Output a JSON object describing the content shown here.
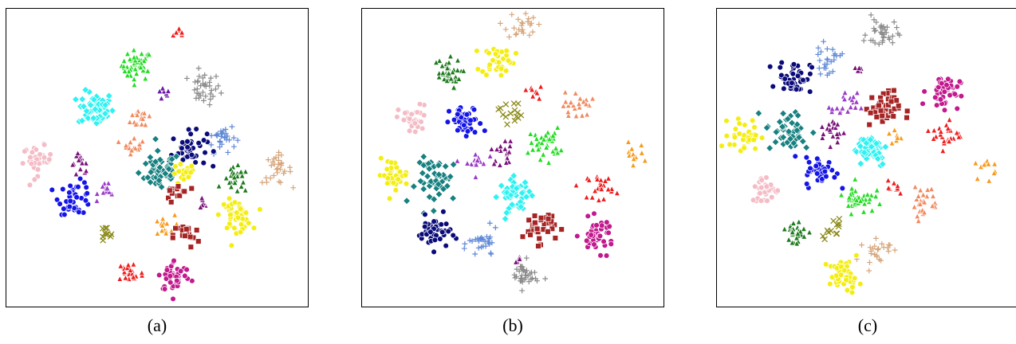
{
  "colors": {
    "red": "#ee1c1c",
    "green": "#22dd22",
    "gray": "#8a8a8a",
    "purple": "#6a1aa6",
    "cyan": "#2ef2f2",
    "coral": "#f08a5f",
    "navy": "#0a0a7a",
    "cornflower": "#5f88d6",
    "pink": "#f4bcc6",
    "teal": "#178080",
    "blue": "#1414e8",
    "orchid": "#9a3bc8",
    "yellow": "#f4ee10",
    "darkgreen": "#1d7a1d",
    "tan": "#d6a67c",
    "olive": "#8c8a1a",
    "orange": "#f79a1a",
    "brown": "#a62424",
    "magenta": "#c2198e",
    "violet": "#7a127a"
  },
  "chart_data": [
    {
      "type": "scatter",
      "caption": "(a)",
      "xlim": [
        0,
        1
      ],
      "ylim": [
        0,
        1
      ],
      "grid": false,
      "clusters": [
        {
          "color": "red",
          "marker": "triangle",
          "x": 0.58,
          "y": 0.93,
          "n": 8,
          "spread": 0.012
        },
        {
          "color": "green",
          "marker": "triangle",
          "x": 0.43,
          "y": 0.82,
          "n": 40,
          "spread": 0.026
        },
        {
          "color": "gray",
          "marker": "plus",
          "x": 0.66,
          "y": 0.74,
          "n": 35,
          "spread": 0.028
        },
        {
          "color": "purple",
          "marker": "triangle",
          "x": 0.52,
          "y": 0.72,
          "n": 8,
          "spread": 0.012
        },
        {
          "color": "cyan",
          "marker": "diamond",
          "x": 0.29,
          "y": 0.67,
          "n": 55,
          "spread": 0.03
        },
        {
          "color": "coral",
          "marker": "triangle",
          "x": 0.45,
          "y": 0.64,
          "n": 18,
          "spread": 0.02
        },
        {
          "color": "cornflower",
          "marker": "plus",
          "x": 0.72,
          "y": 0.57,
          "n": 30,
          "spread": 0.025
        },
        {
          "color": "navy",
          "marker": "circle",
          "x": 0.61,
          "y": 0.53,
          "n": 45,
          "spread": 0.03
        },
        {
          "color": "coral",
          "marker": "triangle",
          "x": 0.42,
          "y": 0.55,
          "n": 15,
          "spread": 0.018
        },
        {
          "color": "pink",
          "marker": "circle",
          "x": 0.09,
          "y": 0.49,
          "n": 35,
          "spread": 0.025
        },
        {
          "color": "violet",
          "marker": "triangle",
          "x": 0.24,
          "y": 0.48,
          "n": 15,
          "spread": 0.018
        },
        {
          "color": "tan",
          "marker": "plus",
          "x": 0.91,
          "y": 0.46,
          "n": 30,
          "spread": 0.025
        },
        {
          "color": "teal",
          "marker": "diamond",
          "x": 0.51,
          "y": 0.45,
          "n": 60,
          "spread": 0.035
        },
        {
          "color": "yellow",
          "marker": "circle",
          "x": 0.59,
          "y": 0.44,
          "n": 20,
          "spread": 0.02
        },
        {
          "color": "darkgreen",
          "marker": "triangle",
          "x": 0.77,
          "y": 0.42,
          "n": 25,
          "spread": 0.022
        },
        {
          "color": "orchid",
          "marker": "triangle",
          "x": 0.33,
          "y": 0.39,
          "n": 12,
          "spread": 0.016
        },
        {
          "color": "brown",
          "marker": "square",
          "x": 0.57,
          "y": 0.38,
          "n": 14,
          "spread": 0.02
        },
        {
          "color": "blue",
          "marker": "circle",
          "x": 0.22,
          "y": 0.36,
          "n": 45,
          "spread": 0.028
        },
        {
          "color": "violet",
          "marker": "triangle",
          "x": 0.65,
          "y": 0.34,
          "n": 8,
          "spread": 0.012
        },
        {
          "color": "yellow",
          "marker": "circle",
          "x": 0.77,
          "y": 0.3,
          "n": 45,
          "spread": 0.026
        },
        {
          "color": "orange",
          "marker": "triangle",
          "x": 0.52,
          "y": 0.26,
          "n": 15,
          "spread": 0.02
        },
        {
          "color": "olive",
          "marker": "cross",
          "x": 0.32,
          "y": 0.23,
          "n": 10,
          "spread": 0.016
        },
        {
          "color": "brown",
          "marker": "square",
          "x": 0.6,
          "y": 0.23,
          "n": 20,
          "spread": 0.022
        },
        {
          "color": "red",
          "marker": "triangle",
          "x": 0.41,
          "y": 0.1,
          "n": 30,
          "spread": 0.022
        },
        {
          "color": "magenta",
          "marker": "circle",
          "x": 0.56,
          "y": 0.09,
          "n": 45,
          "spread": 0.028
        }
      ]
    },
    {
      "type": "scatter",
      "caption": "(b)",
      "xlim": [
        0,
        1
      ],
      "ylim": [
        0,
        1
      ],
      "grid": false,
      "clusters": [
        {
          "color": "tan",
          "marker": "plus",
          "x": 0.53,
          "y": 0.96,
          "n": 25,
          "spread": 0.025
        },
        {
          "color": "yellow",
          "marker": "circle",
          "x": 0.45,
          "y": 0.84,
          "n": 40,
          "spread": 0.028
        },
        {
          "color": "darkgreen",
          "marker": "triangle",
          "x": 0.27,
          "y": 0.79,
          "n": 35,
          "spread": 0.026
        },
        {
          "color": "red",
          "marker": "triangle",
          "x": 0.57,
          "y": 0.73,
          "n": 8,
          "spread": 0.014
        },
        {
          "color": "coral",
          "marker": "triangle",
          "x": 0.72,
          "y": 0.68,
          "n": 25,
          "spread": 0.024
        },
        {
          "color": "olive",
          "marker": "cross",
          "x": 0.49,
          "y": 0.66,
          "n": 15,
          "spread": 0.02
        },
        {
          "color": "pink",
          "marker": "circle",
          "x": 0.16,
          "y": 0.63,
          "n": 35,
          "spread": 0.026
        },
        {
          "color": "blue",
          "marker": "circle",
          "x": 0.34,
          "y": 0.62,
          "n": 45,
          "spread": 0.028
        },
        {
          "color": "green",
          "marker": "triangle",
          "x": 0.61,
          "y": 0.55,
          "n": 35,
          "spread": 0.026
        },
        {
          "color": "violet",
          "marker": "triangle",
          "x": 0.47,
          "y": 0.52,
          "n": 18,
          "spread": 0.022
        },
        {
          "color": "orange",
          "marker": "triangle",
          "x": 0.91,
          "y": 0.51,
          "n": 12,
          "spread": 0.02
        },
        {
          "color": "orchid",
          "marker": "triangle",
          "x": 0.37,
          "y": 0.48,
          "n": 14,
          "spread": 0.02
        },
        {
          "color": "yellow",
          "marker": "circle",
          "x": 0.09,
          "y": 0.44,
          "n": 35,
          "spread": 0.026
        },
        {
          "color": "teal",
          "marker": "diamond",
          "x": 0.25,
          "y": 0.42,
          "n": 50,
          "spread": 0.04
        },
        {
          "color": "red",
          "marker": "triangle",
          "x": 0.8,
          "y": 0.4,
          "n": 25,
          "spread": 0.022
        },
        {
          "color": "cyan",
          "marker": "diamond",
          "x": 0.51,
          "y": 0.37,
          "n": 50,
          "spread": 0.028
        },
        {
          "color": "brown",
          "marker": "square",
          "x": 0.59,
          "y": 0.26,
          "n": 35,
          "spread": 0.028
        },
        {
          "color": "navy",
          "marker": "circle",
          "x": 0.23,
          "y": 0.24,
          "n": 45,
          "spread": 0.028
        },
        {
          "color": "magenta",
          "marker": "circle",
          "x": 0.79,
          "y": 0.23,
          "n": 45,
          "spread": 0.028
        },
        {
          "color": "cornflower",
          "marker": "plus",
          "x": 0.4,
          "y": 0.2,
          "n": 30,
          "spread": 0.025
        },
        {
          "color": "violet",
          "marker": "triangle",
          "x": 0.51,
          "y": 0.14,
          "n": 5,
          "spread": 0.008
        },
        {
          "color": "gray",
          "marker": "plus",
          "x": 0.54,
          "y": 0.09,
          "n": 35,
          "spread": 0.024
        }
      ]
    },
    {
      "type": "scatter",
      "caption": "(c)",
      "xlim": [
        0,
        1
      ],
      "ylim": [
        0,
        1
      ],
      "grid": false,
      "clusters": [
        {
          "color": "gray",
          "marker": "plus",
          "x": 0.55,
          "y": 0.93,
          "n": 35,
          "spread": 0.026
        },
        {
          "color": "cornflower",
          "marker": "plus",
          "x": 0.36,
          "y": 0.84,
          "n": 25,
          "spread": 0.024
        },
        {
          "color": "navy",
          "marker": "circle",
          "x": 0.25,
          "y": 0.78,
          "n": 45,
          "spread": 0.028
        },
        {
          "color": "violet",
          "marker": "triangle",
          "x": 0.47,
          "y": 0.81,
          "n": 5,
          "spread": 0.01
        },
        {
          "color": "magenta",
          "marker": "circle",
          "x": 0.76,
          "y": 0.73,
          "n": 45,
          "spread": 0.028
        },
        {
          "color": "brown",
          "marker": "square",
          "x": 0.55,
          "y": 0.67,
          "n": 45,
          "spread": 0.03
        },
        {
          "color": "orchid",
          "marker": "triangle",
          "x": 0.42,
          "y": 0.68,
          "n": 20,
          "spread": 0.022
        },
        {
          "color": "teal",
          "marker": "diamond",
          "x": 0.23,
          "y": 0.59,
          "n": 45,
          "spread": 0.04
        },
        {
          "color": "yellow",
          "marker": "circle",
          "x": 0.08,
          "y": 0.58,
          "n": 35,
          "spread": 0.026
        },
        {
          "color": "violet",
          "marker": "triangle",
          "x": 0.38,
          "y": 0.59,
          "n": 20,
          "spread": 0.022
        },
        {
          "color": "red",
          "marker": "triangle",
          "x": 0.77,
          "y": 0.58,
          "n": 25,
          "spread": 0.024
        },
        {
          "color": "cyan",
          "marker": "diamond",
          "x": 0.51,
          "y": 0.53,
          "n": 50,
          "spread": 0.03
        },
        {
          "color": "orange",
          "marker": "triangle",
          "x": 0.6,
          "y": 0.57,
          "n": 8,
          "spread": 0.015
        },
        {
          "color": "orange",
          "marker": "triangle",
          "x": 0.91,
          "y": 0.47,
          "n": 12,
          "spread": 0.02
        },
        {
          "color": "blue",
          "marker": "circle",
          "x": 0.34,
          "y": 0.45,
          "n": 45,
          "spread": 0.026
        },
        {
          "color": "pink",
          "marker": "circle",
          "x": 0.15,
          "y": 0.39,
          "n": 35,
          "spread": 0.024
        },
        {
          "color": "green",
          "marker": "triangle",
          "x": 0.47,
          "y": 0.36,
          "n": 40,
          "spread": 0.026
        },
        {
          "color": "coral",
          "marker": "triangle",
          "x": 0.69,
          "y": 0.35,
          "n": 25,
          "spread": 0.026
        },
        {
          "color": "red",
          "marker": "triangle",
          "x": 0.59,
          "y": 0.39,
          "n": 8,
          "spread": 0.014
        },
        {
          "color": "darkgreen",
          "marker": "triangle",
          "x": 0.25,
          "y": 0.24,
          "n": 30,
          "spread": 0.024
        },
        {
          "color": "olive",
          "marker": "cross",
          "x": 0.38,
          "y": 0.26,
          "n": 12,
          "spread": 0.018
        },
        {
          "color": "tan",
          "marker": "plus",
          "x": 0.53,
          "y": 0.18,
          "n": 25,
          "spread": 0.024
        },
        {
          "color": "yellow",
          "marker": "circle",
          "x": 0.42,
          "y": 0.09,
          "n": 45,
          "spread": 0.026
        }
      ]
    }
  ]
}
